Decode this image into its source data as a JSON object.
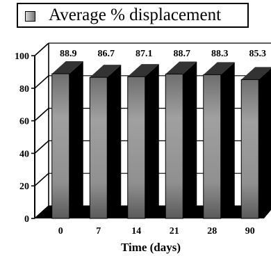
{
  "chart_data": {
    "type": "bar",
    "title": "",
    "xlabel": "Time (days)",
    "ylabel": "",
    "categories": [
      "0",
      "7",
      "14",
      "21",
      "28",
      "90"
    ],
    "series": [
      {
        "name": "Average % displacement",
        "values": [
          88.9,
          86.7,
          87.1,
          88.7,
          88.3,
          85.3
        ]
      }
    ],
    "data_labels": [
      "88.9",
      "86.7",
      "87.1",
      "88.7",
      "88.3",
      "85.3"
    ],
    "ylim": [
      0,
      100
    ],
    "yticks": [
      "0",
      "20",
      "40",
      "60",
      "80",
      "100"
    ],
    "grid": true,
    "style": "3d",
    "legend_position": "top",
    "colors": {
      "bar_front": "#9a9a9a",
      "bar_side": "#000000",
      "bar_top": "#333333",
      "floor": "#000000"
    }
  }
}
